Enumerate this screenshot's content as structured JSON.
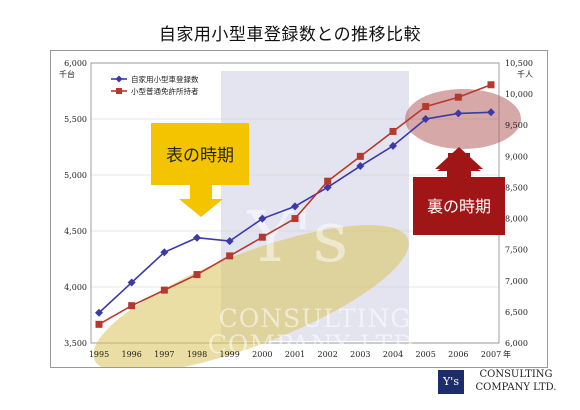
{
  "page": {
    "title": "自家用小型車登録数との推移比較"
  },
  "chart_data": {
    "type": "line",
    "x": [
      "1995",
      "1996",
      "1997",
      "1998",
      "1999",
      "2000",
      "2001",
      "2002",
      "2003",
      "2004",
      "2005",
      "2006",
      "2007"
    ],
    "x_unit": "年",
    "left_axis": {
      "unit": "千台",
      "range": [
        3500,
        6000
      ],
      "ticks": [
        "3,500",
        "4,000",
        "4,500",
        "5,000",
        "5,500",
        "6,000"
      ]
    },
    "right_axis": {
      "unit": "千人",
      "range": [
        6000,
        10500
      ],
      "ticks": [
        "6,000",
        "6,500",
        "7,000",
        "7,500",
        "8,000",
        "8,500",
        "9,000",
        "9,500",
        "10,000",
        "10,500"
      ]
    },
    "series": [
      {
        "name": "自家用小型車登録数",
        "axis": "left",
        "color": "#3b3aa8",
        "marker": "diamond",
        "values": [
          3770,
          4040,
          4310,
          4440,
          4410,
          4610,
          4720,
          4890,
          5080,
          5260,
          5500,
          5550,
          5560
        ]
      },
      {
        "name": "小型普通免許所持者",
        "axis": "right",
        "color": "#b43a2f",
        "marker": "square",
        "values": [
          6300,
          6600,
          6850,
          7100,
          7400,
          7700,
          8000,
          8600,
          9000,
          9400,
          9800,
          9950,
          10150
        ]
      }
    ],
    "annotations": {
      "front": {
        "label": "表の時期",
        "color": "#f5c400"
      },
      "back": {
        "label": "裏の時期",
        "color": "#a01515"
      }
    }
  },
  "watermark": {
    "line1": "CONSULTING",
    "line2": "COMPANY LTD.",
    "mark": "Y's"
  },
  "logo": {
    "mark": "Y's",
    "line1": "CONSULTING",
    "line2": "COMPANY LTD."
  }
}
